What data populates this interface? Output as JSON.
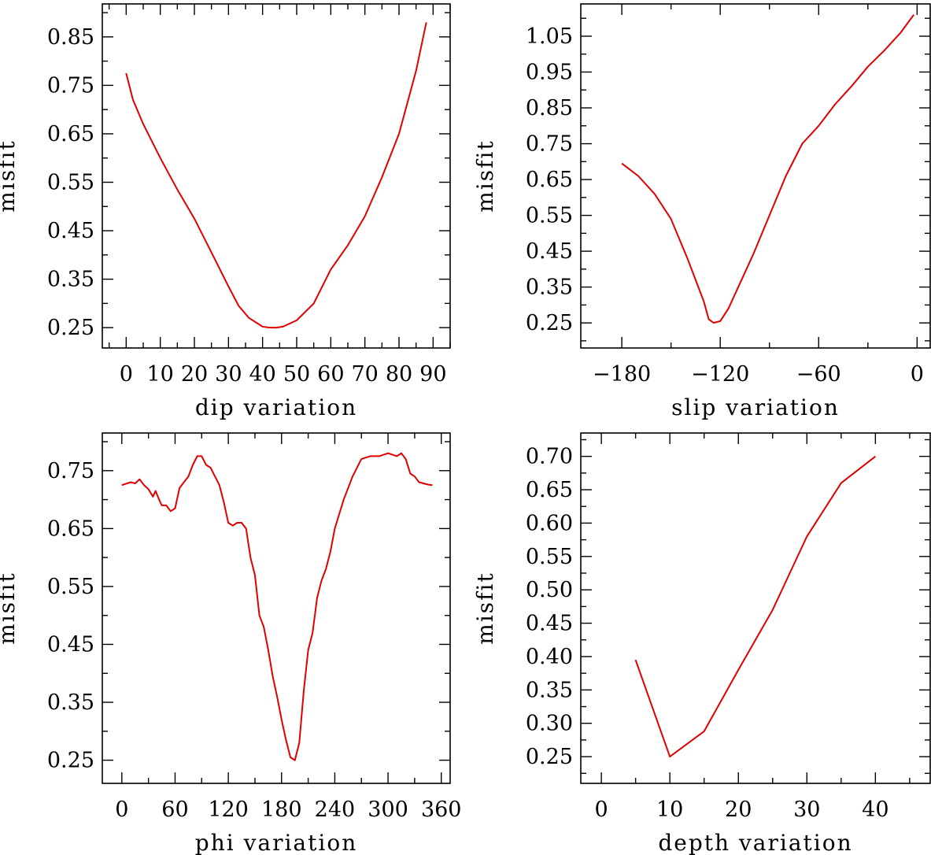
{
  "chart_data": [
    {
      "type": "line",
      "xlabel": "dip    variation",
      "ylabel": "misfit",
      "xlim": [
        -7,
        95
      ],
      "ylim": [
        0.208,
        0.918
      ],
      "xticks": [
        0,
        10,
        20,
        30,
        40,
        50,
        60,
        70,
        80,
        90
      ],
      "xtick_labels": [
        "0",
        "10",
        "20",
        "30",
        "40",
        "50",
        "60",
        "70",
        "80",
        "90"
      ],
      "yticks": [
        0.25,
        0.35,
        0.45,
        0.55,
        0.65,
        0.75,
        0.85
      ],
      "ytick_labels": [
        "0.25",
        "0.35",
        "0.45",
        "0.55",
        "0.65",
        "0.75",
        "0.85"
      ],
      "grid": false,
      "series": [
        {
          "color": "#e00000",
          "x": [
            0,
            2,
            5,
            10,
            15,
            20,
            25,
            30,
            33,
            36,
            40,
            42,
            44,
            46,
            50,
            55,
            60,
            65,
            70,
            75,
            80,
            85,
            88
          ],
          "y": [
            0.775,
            0.72,
            0.67,
            0.6,
            0.535,
            0.475,
            0.405,
            0.335,
            0.295,
            0.27,
            0.252,
            0.25,
            0.25,
            0.252,
            0.265,
            0.3,
            0.37,
            0.42,
            0.48,
            0.56,
            0.65,
            0.78,
            0.88
          ]
        }
      ]
    },
    {
      "type": "line",
      "xlabel": "slip    variation",
      "ylabel": "misfit",
      "xlim": [
        -205,
        8
      ],
      "ylim": [
        0.18,
        1.14
      ],
      "xticks": [
        -180,
        -120,
        -60,
        0
      ],
      "xtick_labels": [
        "−180",
        "−120",
        "−60",
        "0"
      ],
      "yticks": [
        0.25,
        0.35,
        0.45,
        0.55,
        0.65,
        0.75,
        0.85,
        0.95,
        1.05
      ],
      "ytick_labels": [
        "0.25",
        "0.35",
        "0.45",
        "0.55",
        "0.65",
        "0.75",
        "0.85",
        "0.95",
        "1.05"
      ],
      "grid": false,
      "series": [
        {
          "color": "#e00000",
          "x": [
            -180,
            -170,
            -160,
            -150,
            -140,
            -135,
            -130,
            -127,
            -124,
            -120,
            -115,
            -110,
            -100,
            -90,
            -80,
            -70,
            -60,
            -50,
            -40,
            -30,
            -20,
            -10,
            -2
          ],
          "y": [
            0.695,
            0.66,
            0.61,
            0.54,
            0.43,
            0.37,
            0.31,
            0.26,
            0.25,
            0.255,
            0.29,
            0.34,
            0.44,
            0.55,
            0.66,
            0.75,
            0.8,
            0.86,
            0.91,
            0.965,
            1.01,
            1.06,
            1.11
          ]
        }
      ]
    },
    {
      "type": "line",
      "xlabel": "phi    variation",
      "ylabel": "misfit",
      "xlim": [
        -22,
        370
      ],
      "ylim": [
        0.21,
        0.815
      ],
      "xticks": [
        0,
        60,
        120,
        180,
        240,
        300,
        360
      ],
      "xtick_labels": [
        "0",
        "60",
        "120",
        "180",
        "240",
        "300",
        "360"
      ],
      "yticks": [
        0.25,
        0.35,
        0.45,
        0.55,
        0.65,
        0.75
      ],
      "ytick_labels": [
        "0.25",
        "0.35",
        "0.45",
        "0.55",
        "0.65",
        "0.75"
      ],
      "grid": false,
      "series": [
        {
          "color": "#e00000",
          "x": [
            0,
            10,
            15,
            20,
            25,
            30,
            35,
            38,
            42,
            45,
            50,
            55,
            60,
            65,
            70,
            75,
            80,
            85,
            90,
            95,
            100,
            105,
            110,
            115,
            120,
            125,
            130,
            135,
            140,
            145,
            150,
            155,
            160,
            165,
            170,
            175,
            180,
            185,
            190,
            195,
            200,
            205,
            210,
            215,
            220,
            225,
            230,
            235,
            240,
            250,
            260,
            270,
            280,
            290,
            300,
            310,
            315,
            320,
            325,
            330,
            335,
            340,
            345,
            350
          ],
          "y": [
            0.725,
            0.73,
            0.728,
            0.735,
            0.725,
            0.718,
            0.705,
            0.715,
            0.7,
            0.69,
            0.69,
            0.68,
            0.685,
            0.72,
            0.73,
            0.74,
            0.76,
            0.775,
            0.775,
            0.76,
            0.755,
            0.74,
            0.725,
            0.695,
            0.66,
            0.655,
            0.66,
            0.66,
            0.65,
            0.6,
            0.57,
            0.5,
            0.48,
            0.44,
            0.395,
            0.36,
            0.32,
            0.285,
            0.255,
            0.25,
            0.28,
            0.37,
            0.44,
            0.47,
            0.53,
            0.56,
            0.58,
            0.61,
            0.65,
            0.7,
            0.74,
            0.77,
            0.775,
            0.775,
            0.78,
            0.775,
            0.78,
            0.77,
            0.745,
            0.74,
            0.73,
            0.728,
            0.726,
            0.725
          ]
        }
      ]
    },
    {
      "type": "line",
      "xlabel": "depth    variation",
      "ylabel": "misfit",
      "xlim": [
        -3,
        48
      ],
      "ylim": [
        0.21,
        0.735
      ],
      "xticks": [
        0,
        10,
        20,
        30,
        40
      ],
      "xtick_labels": [
        "0",
        "10",
        "20",
        "30",
        "40"
      ],
      "yticks": [
        0.25,
        0.3,
        0.35,
        0.4,
        0.45,
        0.5,
        0.55,
        0.6,
        0.65,
        0.7
      ],
      "ytick_labels": [
        "0.25",
        "0.30",
        "0.35",
        "0.40",
        "0.45",
        "0.50",
        "0.55",
        "0.60",
        "0.65",
        "0.70"
      ],
      "grid": false,
      "series": [
        {
          "color": "#e00000",
          "x": [
            5,
            10,
            15,
            20,
            25,
            30,
            35,
            40
          ],
          "y": [
            0.395,
            0.25,
            0.288,
            0.38,
            0.47,
            0.58,
            0.66,
            0.7
          ]
        }
      ]
    }
  ]
}
